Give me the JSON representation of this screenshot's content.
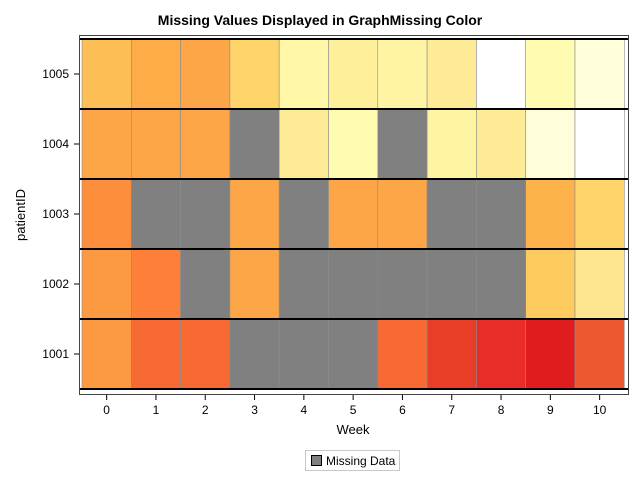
{
  "chart_data": {
    "type": "heatmap",
    "title": "Missing Values Displayed in GraphMissing Color",
    "xlabel": "Week",
    "ylabel": "patientID",
    "x_categories": [
      "0",
      "1",
      "2",
      "3",
      "4",
      "5",
      "6",
      "7",
      "8",
      "9",
      "10"
    ],
    "y_categories": [
      "1001",
      "1002",
      "1003",
      "1004",
      "1005"
    ],
    "missing_color": "#808080",
    "rows": [
      {
        "patientID": "1005",
        "cells": [
          "#FDBE55",
          "#FDAC48",
          "#FDA647",
          "#FED46B",
          "#FFF6A7",
          "#FEEF9B",
          "#FFF4A3",
          "#FEEB95",
          "#FFFFFF",
          "#FFFCB2",
          "#FFFDDA"
        ]
      },
      {
        "patientID": "1004",
        "cells": [
          "#FDA647",
          "#FDA647",
          "#FDA647",
          "missing",
          "#FEEB95",
          "#FFFCB2",
          "missing",
          "#FFF4A3",
          "#FEEB95",
          "#FFFDDA",
          "#FFFFFF"
        ]
      },
      {
        "patientID": "1003",
        "cells": [
          "#FD8E3C",
          "missing",
          "missing",
          "#FDA647",
          "missing",
          "#FDA647",
          "#FDA647",
          "missing",
          "missing",
          "#FEB24C",
          "#FED46B"
        ]
      },
      {
        "patientID": "1002",
        "cells": [
          "#FD9A41",
          "#FD7F38",
          "missing",
          "#FDA647",
          "missing",
          "missing",
          "missing",
          "missing",
          "missing",
          "#FECB5E",
          "#FEE58F"
        ]
      },
      {
        "patientID": "1001",
        "cells": [
          "#FD9A41",
          "#F76A34",
          "#F76A34",
          "missing",
          "missing",
          "missing",
          "#F76A34",
          "#E83E27",
          "#E82D26",
          "#E01C1F",
          "#EE572F"
        ]
      }
    ],
    "legend": {
      "label": "Missing Data",
      "placement": "bottom-center"
    },
    "grid": false
  }
}
